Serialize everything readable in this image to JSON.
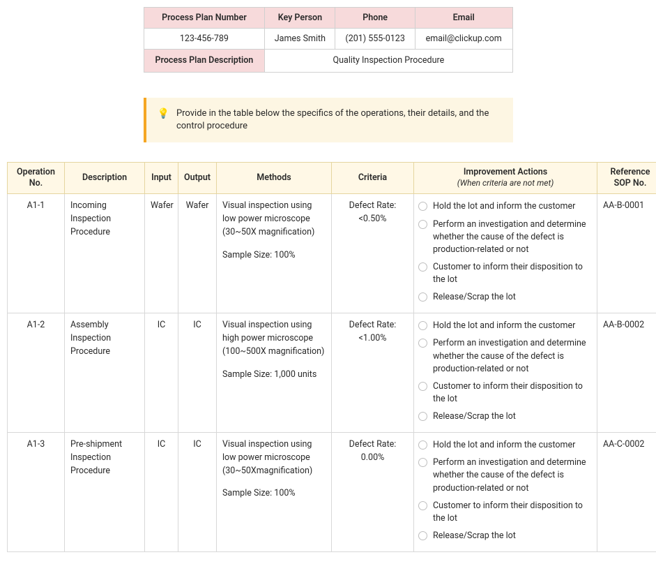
{
  "header": {
    "columns": [
      "Process Plan Number",
      "Key Person",
      "Phone",
      "Email"
    ],
    "values": [
      "123-456-789",
      "James Smith",
      "(201) 555-0123",
      "email@clickup.com"
    ],
    "desc_label": "Process Plan Description",
    "desc_value": "Quality Inspection Procedure"
  },
  "callout": {
    "icon": "💡",
    "text": "Provide in the table below the specifics of the operations, their details, and the control procedure"
  },
  "ops_table": {
    "columns": [
      {
        "label": "Operation No."
      },
      {
        "label": "Description"
      },
      {
        "label": "Input"
      },
      {
        "label": "Output"
      },
      {
        "label": "Methods"
      },
      {
        "label": "Criteria"
      },
      {
        "label": "Improvement Actions",
        "sub": "(When criteria are not met)"
      },
      {
        "label": "Reference SOP No."
      }
    ],
    "rows": [
      {
        "op_no": "A1-1",
        "description": "Incoming Inspection Procedure",
        "input": "Wafer",
        "output": "Wafer",
        "methods_line1": "Visual inspection using low power microscope (30~50X magnification)",
        "methods_line2": "Sample Size: 100%",
        "criteria_label": "Defect Rate:",
        "criteria_value": "<0.50%",
        "actions": [
          "Hold the lot and inform the customer",
          "Perform an investigation and determine whether the cause of the defect is production-related or not",
          "Customer to inform their disposition to the lot",
          "Release/Scrap the lot"
        ],
        "sop": "AA-B-0001"
      },
      {
        "op_no": "A1-2",
        "description": "Assembly Inspection Procedure",
        "input": "IC",
        "output": "IC",
        "methods_line1": "Visual inspection using high power microscope (100~500X magnification)",
        "methods_line2": "Sample Size: 1,000 units",
        "criteria_label": "Defect Rate:",
        "criteria_value": "<1.00%",
        "actions": [
          "Hold the lot and inform the customer",
          "Perform an investigation and determine whether the cause of the defect is production-related or not",
          "Customer to inform their disposition to the lot",
          "Release/Scrap the lot"
        ],
        "sop": "AA-B-0002"
      },
      {
        "op_no": "A1-3",
        "description": "Pre-shipment Inspection Procedure",
        "input": "IC",
        "output": "IC",
        "methods_line1": "Visual inspection using low power microscope (30~50Xmagnification)",
        "methods_line2": "Sample Size: 100%",
        "criteria_label": "Defect Rate:",
        "criteria_value": "0.00%",
        "actions": [
          "Hold the lot and inform the customer",
          "Perform an investigation and determine whether the cause of the defect is production-related or not",
          "Customer to inform their disposition to the lot",
          "Release/Scrap the lot"
        ],
        "sop": "AA-C-0002"
      }
    ]
  },
  "styling": {
    "header_bg": "#f7dadb",
    "header_border": "#d0d0d0",
    "callout_bg": "#fdf6e3",
    "callout_border": "#f5a623",
    "ops_th_bg": "#fff8e6",
    "ops_th_border": "#e5d5a0",
    "ops_td_border": "#d8d8d8",
    "radio_border": "#bfbfbf",
    "text_color": "#2a2a2a",
    "base_font_size": 13
  }
}
